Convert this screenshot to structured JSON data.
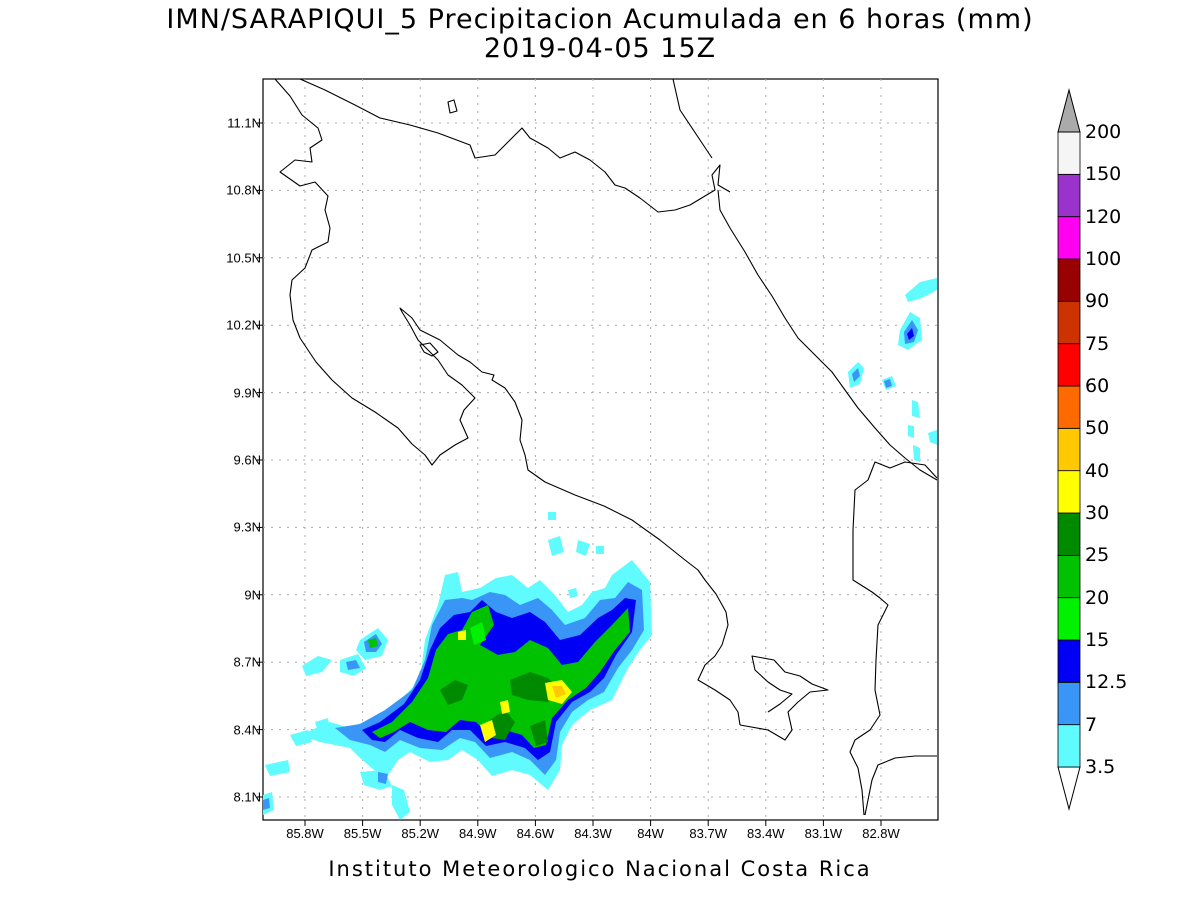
{
  "title": "IMN/SARAPIQUI_5 Precipitacion Acumulada en 6 horas (mm)",
  "subtitle": "2019-04-05 15Z",
  "footer": "Instituto Meteorologico Nacional Costa Rica",
  "lat_labels": [
    "11.1N",
    "10.8N",
    "10.5N",
    "10.2N",
    "9.9N",
    "9.6N",
    "9.3N",
    "9N",
    "8.7N",
    "8.4N",
    "8.1N"
  ],
  "lon_labels": [
    "85.8W",
    "85.5W",
    "85.2W",
    "84.9W",
    "84.6W",
    "84.3W",
    "84W",
    "83.7W",
    "83.4W",
    "83.1W",
    "82.8W"
  ],
  "colorbar": {
    "labels": [
      "3.5",
      "7",
      "12.5",
      "15",
      "20",
      "25",
      "30",
      "40",
      "50",
      "60",
      "75",
      "90",
      "100",
      "120",
      "150",
      "200"
    ],
    "colors": [
      "#ffffff",
      "#5ffbff",
      "#3a96f6",
      "#0000f5",
      "#00f200",
      "#00c200",
      "#008a00",
      "#ffff00",
      "#ffc800",
      "#ff6a00",
      "#ff0000",
      "#cc3300",
      "#990000",
      "#ff00f0",
      "#9933cc",
      "#f5f5f5",
      "#aaaaaa"
    ]
  }
}
